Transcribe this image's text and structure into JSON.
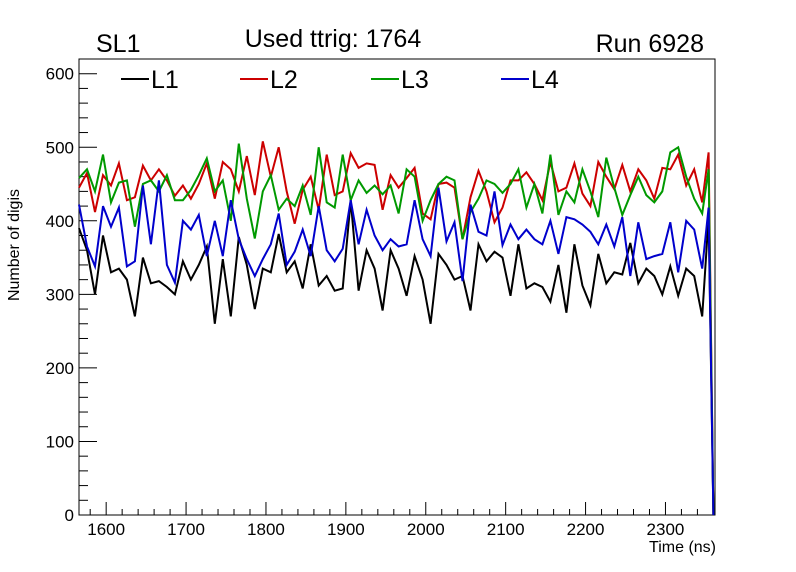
{
  "chart_data": {
    "type": "line",
    "title": "Used ttrig: 1764",
    "label_left": "SL1",
    "label_right": "Run 6928",
    "xlabel": "Time (ns)",
    "ylabel": "Number of digis",
    "xlim": [
      1566,
      2362
    ],
    "ylim": [
      0,
      620
    ],
    "xticks": [
      1600,
      1700,
      1800,
      1900,
      2000,
      2100,
      2200,
      2300
    ],
    "yticks": [
      0,
      100,
      200,
      300,
      400,
      500,
      600
    ],
    "legend_position": "top",
    "series": [
      {
        "name": "L1",
        "color": "#000000",
        "x": [
          1566,
          1576,
          1586,
          1596,
          1606,
          1616,
          1626,
          1636,
          1646,
          1656,
          1666,
          1676,
          1686,
          1696,
          1706,
          1716,
          1726,
          1736,
          1746,
          1756,
          1766,
          1776,
          1786,
          1796,
          1806,
          1816,
          1826,
          1836,
          1846,
          1856,
          1866,
          1876,
          1886,
          1896,
          1906,
          1916,
          1926,
          1936,
          1946,
          1956,
          1966,
          1976,
          1986,
          1996,
          2006,
          2016,
          2026,
          2036,
          2046,
          2056,
          2066,
          2076,
          2086,
          2096,
          2106,
          2116,
          2126,
          2136,
          2146,
          2156,
          2166,
          2176,
          2186,
          2196,
          2206,
          2216,
          2226,
          2236,
          2246,
          2256,
          2266,
          2276,
          2286,
          2296,
          2306,
          2316,
          2326,
          2336,
          2346,
          2354,
          2360
        ],
        "y": [
          390,
          360,
          300,
          380,
          330,
          335,
          320,
          270,
          350,
          315,
          318,
          310,
          300,
          345,
          320,
          340,
          365,
          260,
          348,
          270,
          378,
          340,
          280,
          335,
          330,
          382,
          330,
          345,
          308,
          368,
          312,
          325,
          305,
          308,
          428,
          305,
          360,
          335,
          278,
          360,
          335,
          298,
          352,
          320,
          260,
          355,
          340,
          320,
          325,
          278,
          368,
          345,
          358,
          350,
          298,
          368,
          308,
          315,
          310,
          290,
          340,
          275,
          368,
          312,
          285,
          355,
          315,
          330,
          327,
          370,
          315,
          335,
          325,
          300,
          338,
          298,
          335,
          325,
          270,
          405,
          0
        ]
      },
      {
        "name": "L2",
        "color": "#cc0000",
        "x": [
          1566,
          1576,
          1586,
          1596,
          1606,
          1616,
          1626,
          1636,
          1646,
          1656,
          1666,
          1676,
          1686,
          1696,
          1706,
          1716,
          1726,
          1736,
          1746,
          1756,
          1766,
          1776,
          1786,
          1796,
          1806,
          1816,
          1826,
          1836,
          1846,
          1856,
          1866,
          1876,
          1886,
          1896,
          1906,
          1916,
          1926,
          1936,
          1946,
          1956,
          1966,
          1976,
          1986,
          1996,
          2006,
          2016,
          2026,
          2036,
          2046,
          2056,
          2066,
          2076,
          2086,
          2096,
          2106,
          2116,
          2126,
          2136,
          2146,
          2156,
          2166,
          2176,
          2186,
          2196,
          2206,
          2216,
          2226,
          2236,
          2246,
          2256,
          2266,
          2276,
          2286,
          2296,
          2306,
          2316,
          2326,
          2336,
          2346,
          2354,
          2360
        ],
        "y": [
          445,
          465,
          412,
          462,
          448,
          478,
          428,
          432,
          475,
          455,
          470,
          455,
          434,
          448,
          430,
          450,
          478,
          430,
          480,
          470,
          440,
          488,
          435,
          508,
          460,
          500,
          440,
          396,
          442,
          460,
          415,
          490,
          435,
          440,
          492,
          472,
          478,
          476,
          415,
          462,
          445,
          458,
          472,
          410,
          402,
          450,
          452,
          445,
          375,
          432,
          468,
          440,
          398,
          418,
          455,
          455,
          466,
          450,
          428,
          480,
          440,
          445,
          478,
          437,
          420,
          480,
          460,
          443,
          476,
          440,
          470,
          455,
          430,
          472,
          470,
          490,
          448,
          470,
          425,
          493,
          0
        ]
      },
      {
        "name": "L3",
        "color": "#009900",
        "x": [
          1566,
          1576,
          1586,
          1596,
          1606,
          1616,
          1626,
          1636,
          1646,
          1656,
          1666,
          1676,
          1686,
          1696,
          1706,
          1716,
          1726,
          1736,
          1746,
          1756,
          1766,
          1776,
          1786,
          1796,
          1806,
          1816,
          1826,
          1836,
          1846,
          1856,
          1866,
          1876,
          1886,
          1896,
          1906,
          1916,
          1926,
          1936,
          1946,
          1956,
          1966,
          1976,
          1986,
          1996,
          2006,
          2016,
          2026,
          2036,
          2046,
          2056,
          2066,
          2076,
          2086,
          2096,
          2106,
          2116,
          2126,
          2136,
          2146,
          2156,
          2166,
          2176,
          2186,
          2196,
          2206,
          2216,
          2226,
          2236,
          2246,
          2256,
          2266,
          2276,
          2286,
          2296,
          2306,
          2316,
          2326,
          2336,
          2346,
          2354,
          2360
        ],
        "y": [
          458,
          470,
          440,
          490,
          425,
          452,
          455,
          392,
          450,
          455,
          440,
          462,
          428,
          428,
          442,
          462,
          485,
          440,
          455,
          400,
          505,
          430,
          376,
          440,
          462,
          415,
          430,
          420,
          448,
          408,
          500,
          425,
          418,
          490,
          428,
          455,
          438,
          448,
          436,
          448,
          410,
          470,
          460,
          400,
          428,
          450,
          460,
          455,
          375,
          412,
          430,
          455,
          450,
          438,
          450,
          470,
          418,
          450,
          410,
          490,
          408,
          440,
          425,
          470,
          440,
          405,
          486,
          445,
          408,
          435,
          460,
          435,
          425,
          440,
          493,
          500,
          460,
          430,
          410,
          470,
          0
        ]
      },
      {
        "name": "L4",
        "color": "#0000cc",
        "x": [
          1566,
          1576,
          1586,
          1596,
          1606,
          1616,
          1626,
          1636,
          1646,
          1656,
          1666,
          1676,
          1686,
          1696,
          1706,
          1716,
          1726,
          1736,
          1746,
          1756,
          1766,
          1776,
          1786,
          1796,
          1806,
          1816,
          1826,
          1836,
          1846,
          1856,
          1866,
          1876,
          1886,
          1896,
          1906,
          1916,
          1926,
          1936,
          1946,
          1956,
          1966,
          1976,
          1986,
          1996,
          2006,
          2016,
          2026,
          2036,
          2046,
          2056,
          2066,
          2076,
          2086,
          2096,
          2106,
          2116,
          2126,
          2136,
          2146,
          2156,
          2166,
          2176,
          2186,
          2196,
          2206,
          2216,
          2226,
          2236,
          2246,
          2256,
          2266,
          2276,
          2286,
          2296,
          2306,
          2316,
          2326,
          2336,
          2346,
          2354,
          2360
        ],
        "y": [
          422,
          365,
          338,
          420,
          392,
          418,
          338,
          345,
          448,
          368,
          455,
          340,
          316,
          400,
          388,
          408,
          352,
          400,
          352,
          428,
          375,
          348,
          325,
          348,
          368,
          410,
          340,
          358,
          388,
          352,
          420,
          360,
          345,
          362,
          428,
          368,
          415,
          380,
          360,
          375,
          365,
          368,
          428,
          375,
          352,
          445,
          372,
          398,
          318,
          422,
          385,
          380,
          440,
          367,
          395,
          375,
          388,
          375,
          368,
          400,
          355,
          405,
          402,
          395,
          385,
          368,
          395,
          365,
          405,
          325,
          398,
          348,
          352,
          355,
          398,
          330,
          400,
          388,
          335,
          418,
          0
        ]
      }
    ]
  }
}
